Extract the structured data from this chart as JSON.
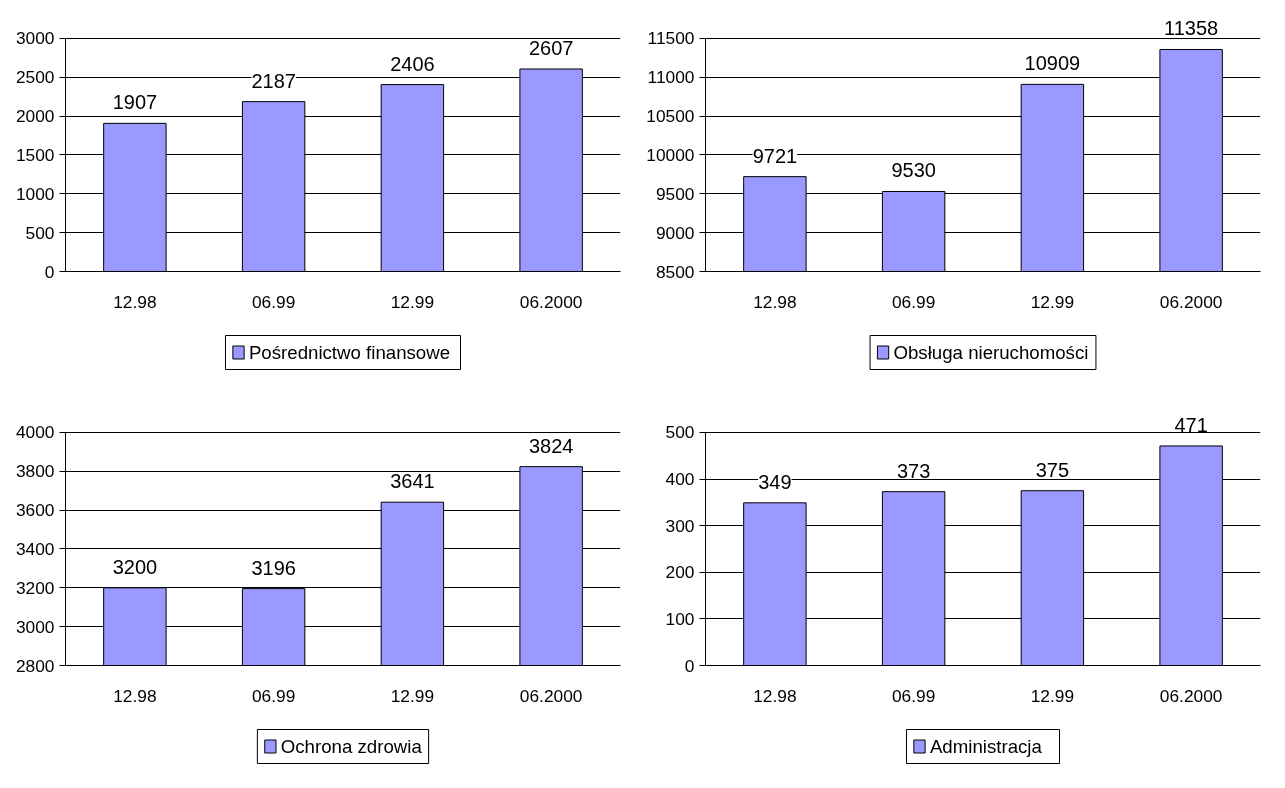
{
  "chart_data": [
    {
      "type": "bar",
      "categories": [
        "12.98",
        "06.99",
        "12.99",
        "06.2000"
      ],
      "series": [
        {
          "name": "Pośrednictwo finansowe",
          "color": "#9999ff",
          "values": [
            1907,
            2187,
            2406,
            2607
          ]
        }
      ],
      "ylim": [
        0,
        3000
      ],
      "yticks": [
        0,
        500,
        1000,
        1500,
        2000,
        2500,
        3000
      ],
      "grid": "y",
      "legend": "bottom",
      "data_labels": true
    },
    {
      "type": "bar",
      "categories": [
        "12.98",
        "06.99",
        "12.99",
        "06.2000"
      ],
      "series": [
        {
          "name": "Obsługa nieruchomości",
          "color": "#9999ff",
          "values": [
            9721,
            9530,
            10909,
            11358
          ]
        }
      ],
      "ylim": [
        8500,
        11500
      ],
      "yticks": [
        8500,
        9000,
        9500,
        10000,
        10500,
        11000,
        11500
      ],
      "grid": "y",
      "legend": "bottom",
      "data_labels": true
    },
    {
      "type": "bar",
      "categories": [
        "12.98",
        "06.99",
        "12.99",
        "06.2000"
      ],
      "series": [
        {
          "name": "Ochrona zdrowia",
          "color": "#9999ff",
          "values": [
            3200,
            3196,
            3641,
            3824
          ]
        }
      ],
      "ylim": [
        2800,
        4000
      ],
      "yticks": [
        2800,
        3000,
        3200,
        3400,
        3600,
        3800,
        4000
      ],
      "grid": "y",
      "legend": "bottom",
      "data_labels": true
    },
    {
      "type": "bar",
      "categories": [
        "12.98",
        "06.99",
        "12.99",
        "06.2000"
      ],
      "series": [
        {
          "name": "Administracja",
          "color": "#9999ff",
          "values": [
            349,
            373,
            375,
            471
          ]
        }
      ],
      "ylim": [
        0,
        500
      ],
      "yticks": [
        0,
        100,
        200,
        300,
        400,
        500
      ],
      "grid": "y",
      "legend": "bottom",
      "data_labels": true
    }
  ]
}
